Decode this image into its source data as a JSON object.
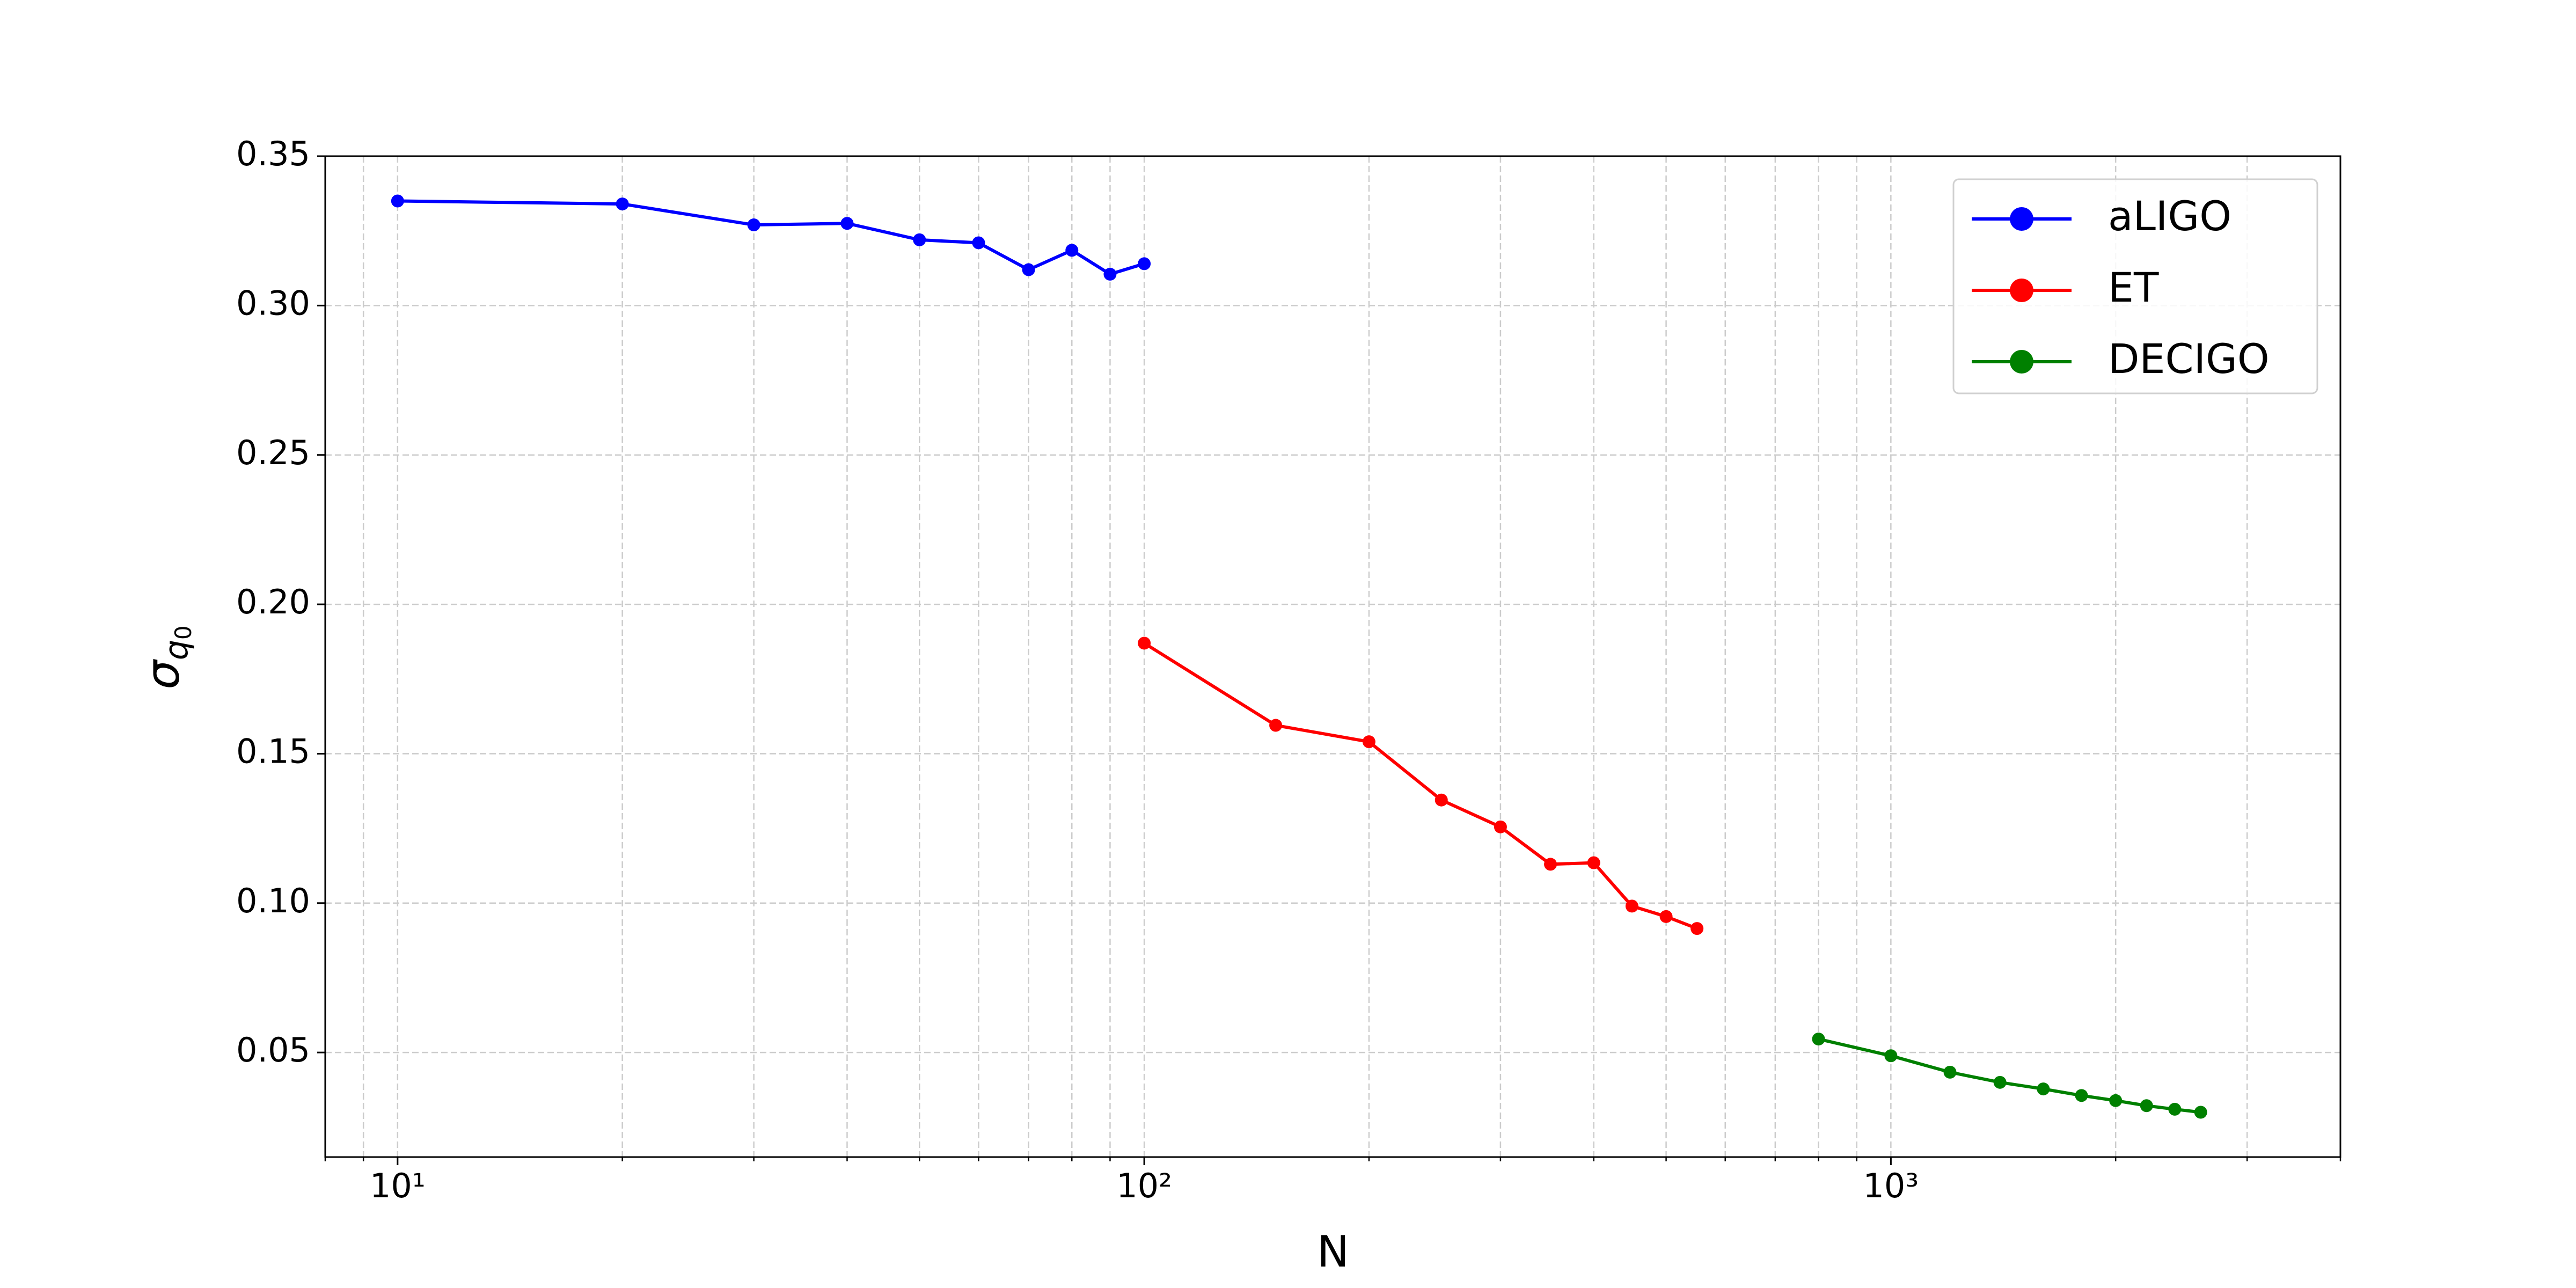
{
  "chart_data": {
    "type": "line",
    "xlabel": "N",
    "ylabel": {
      "symbol": "σ",
      "sub": "q",
      "subsub": "0"
    },
    "xscale": "log",
    "xlim": [
      8,
      4000
    ],
    "ylim": [
      0.015,
      0.35
    ],
    "xticks": [
      {
        "value": 10,
        "label": "10¹"
      },
      {
        "value": 100,
        "label": "10²"
      },
      {
        "value": 1000,
        "label": "10³"
      }
    ],
    "xminorticks": [
      8,
      9,
      20,
      30,
      40,
      50,
      60,
      70,
      80,
      90,
      200,
      300,
      400,
      500,
      600,
      700,
      800,
      900,
      2000,
      3000,
      4000
    ],
    "yticks": [
      0.05,
      {
        "value": 0.1,
        "label": "0.10"
      },
      0.15,
      {
        "value": 0.2,
        "label": "0.20"
      },
      0.25,
      {
        "value": 0.3,
        "label": "0.30"
      },
      0.35
    ],
    "grid": true,
    "legend": "upper right",
    "series": [
      {
        "name": "aLIGO",
        "color": "#0000ff",
        "x": [
          10,
          20,
          30,
          40,
          50,
          60,
          70,
          80,
          90,
          100
        ],
        "values": [
          0.335,
          0.334,
          0.327,
          0.3275,
          0.322,
          0.321,
          0.312,
          0.3185,
          0.3105,
          0.314
        ]
      },
      {
        "name": "ET",
        "color": "#ff0000",
        "x": [
          100,
          150,
          200,
          250,
          300,
          350,
          400,
          450,
          500,
          550
        ],
        "values": [
          0.187,
          0.1595,
          0.154,
          0.1345,
          0.1255,
          0.113,
          0.1135,
          0.099,
          0.0955,
          0.0915
        ]
      },
      {
        "name": "DECIGO",
        "color": "#008000",
        "x": [
          800,
          1000,
          1200,
          1400,
          1600,
          1800,
          2000,
          2200,
          2400,
          2600
        ],
        "values": [
          0.0545,
          0.0489,
          0.0434,
          0.04,
          0.0378,
          0.0356,
          0.0339,
          0.0322,
          0.031,
          0.03
        ]
      }
    ]
  }
}
